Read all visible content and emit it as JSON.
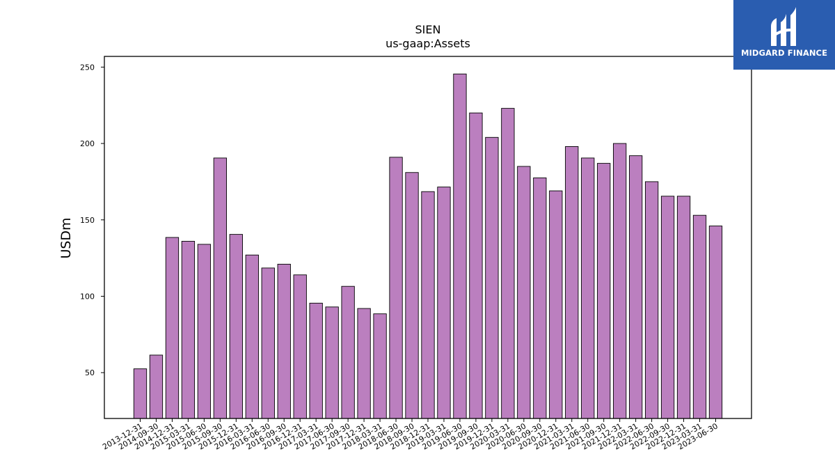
{
  "chart_data": {
    "type": "bar",
    "title": "SIEN",
    "subtitle": "us-gaap:Assets",
    "xlabel": "",
    "ylabel": "USDm",
    "ylim": [
      20,
      257
    ],
    "yticks": [
      50,
      100,
      150,
      200,
      250
    ],
    "bar_color": "#bb7fbf",
    "edge_color": "#000000",
    "grid": false,
    "categories": [
      "2013-12-31",
      "2014-09-30",
      "2014-12-31",
      "2015-03-31",
      "2015-06-30",
      "2015-09-30",
      "2015-12-31",
      "2016-03-31",
      "2016-06-30",
      "2016-09-30",
      "2016-12-31",
      "2017-03-31",
      "2017-06-30",
      "2017-09-30",
      "2017-12-31",
      "2018-03-31",
      "2018-06-30",
      "2018-09-30",
      "2018-12-31",
      "2019-03-31",
      "2019-06-30",
      "2019-09-30",
      "2019-12-31",
      "2020-03-31",
      "2020-06-30",
      "2020-09-30",
      "2020-12-31",
      "2021-03-31",
      "2021-06-30",
      "2021-09-30",
      "2021-12-31",
      "2022-03-31",
      "2022-06-30",
      "2022-09-30",
      "2022-12-31",
      "2023-03-31",
      "2023-06-30"
    ],
    "values": [
      52.5,
      61.5,
      138.5,
      136,
      134,
      190.5,
      140.5,
      127,
      118.5,
      121,
      114,
      95.5,
      93,
      106.5,
      92,
      88.5,
      191,
      181,
      168.5,
      171.5,
      245.5,
      220,
      204,
      223,
      185,
      177.5,
      169,
      198,
      190.5,
      187,
      200,
      192,
      175,
      165.5,
      165.5,
      153,
      146
    ]
  },
  "logo": {
    "text": "MIDGARD FINANCE",
    "icon": "midgard-finance-logo-icon"
  }
}
